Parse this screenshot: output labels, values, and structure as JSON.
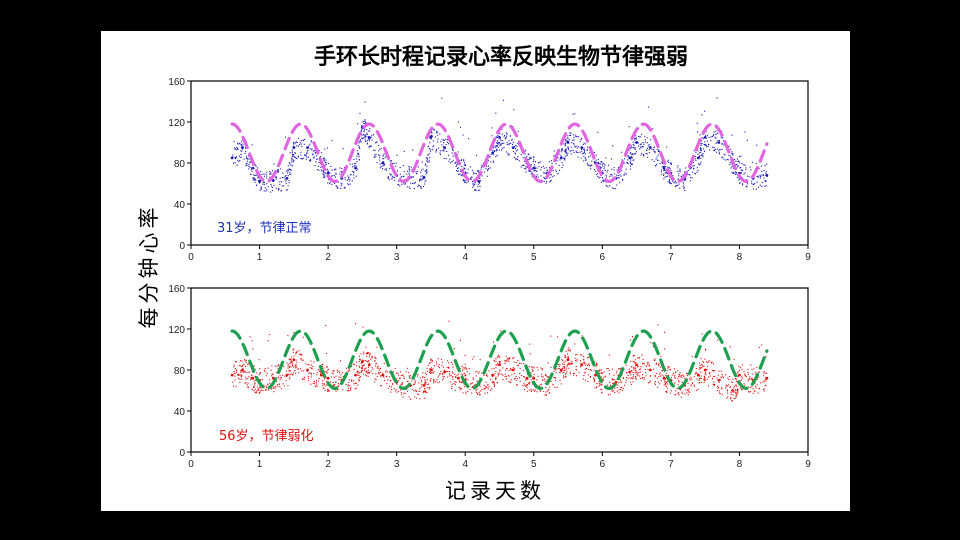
{
  "chart_data": {
    "type": "scatter",
    "title": "手环长时程记录心率反映生物节律强弱",
    "xlabel": "记录天数",
    "ylabel": "每分钟心率",
    "xlim": [
      0,
      9
    ],
    "ylim": [
      0,
      160
    ],
    "xticks": [
      "0",
      "1",
      "2",
      "3",
      "4",
      "5",
      "6",
      "7",
      "8",
      "9"
    ],
    "yticks": [
      "0",
      "40",
      "80",
      "120",
      "160"
    ],
    "grid": false,
    "panels": [
      {
        "label": "31岁，节律正常",
        "label_color": "#1f2fbf",
        "data_color": "#1a1ab8",
        "fit_color": "#e066e0",
        "x_range": [
          0.6,
          8.4
        ],
        "series": [
          {
            "kind": "heart_rate_points",
            "x": [
              0.6,
              0.75,
              0.9,
              1.0,
              1.2,
              1.4,
              1.5,
              1.7,
              1.9,
              2.0,
              2.2,
              2.4,
              2.5,
              2.6,
              2.8,
              3.0,
              3.2,
              3.4,
              3.5,
              3.7,
              3.9,
              4.0,
              4.2,
              4.4,
              4.5,
              4.7,
              4.9,
              5.0,
              5.2,
              5.4,
              5.5,
              5.7,
              5.9,
              6.0,
              6.2,
              6.4,
              6.5,
              6.7,
              6.9,
              7.0,
              7.2,
              7.4,
              7.5,
              7.7,
              7.9,
              8.0,
              8.2,
              8.4
            ],
            "values": [
              85,
              95,
              75,
              62,
              63,
              65,
              95,
              95,
              80,
              70,
              65,
              75,
              115,
              105,
              80,
              68,
              66,
              66,
              105,
              95,
              80,
              70,
              62,
              90,
              105,
              95,
              80,
              75,
              70,
              85,
              100,
              95,
              80,
              70,
              65,
              85,
              100,
              95,
              75,
              70,
              64,
              85,
              105,
              100,
              80,
              70,
              65,
              68
            ]
          },
          {
            "kind": "rhythm_fit",
            "period": 1.0,
            "mean": 90,
            "amplitude": 28,
            "peak_days": [
              0.6,
              1.6,
              2.6,
              3.6,
              4.6,
              5.6,
              6.6,
              7.6
            ]
          }
        ]
      },
      {
        "label": "56岁，节律弱化",
        "label_color": "#e01010",
        "data_color": "#e01010",
        "fit_color": "#1ea050",
        "x_range": [
          0.6,
          8.4
        ],
        "series": [
          {
            "kind": "heart_rate_points",
            "x": [
              0.6,
              0.75,
              0.9,
              1.0,
              1.2,
              1.4,
              1.5,
              1.7,
              1.9,
              2.0,
              2.2,
              2.4,
              2.5,
              2.6,
              2.8,
              3.0,
              3.2,
              3.4,
              3.5,
              3.7,
              3.9,
              4.0,
              4.2,
              4.4,
              4.5,
              4.7,
              4.9,
              5.0,
              5.2,
              5.4,
              5.5,
              5.7,
              5.9,
              6.0,
              6.2,
              6.4,
              6.5,
              6.7,
              6.9,
              7.0,
              7.2,
              7.4,
              7.5,
              7.7,
              7.9,
              8.0,
              8.2,
              8.4
            ],
            "values": [
              75,
              80,
              72,
              70,
              72,
              75,
              90,
              80,
              75,
              72,
              70,
              75,
              88,
              85,
              75,
              68,
              65,
              65,
              80,
              78,
              72,
              70,
              66,
              75,
              85,
              80,
              72,
              72,
              68,
              80,
              90,
              85,
              75,
              70,
              68,
              78,
              85,
              80,
              72,
              70,
              65,
              75,
              80,
              70,
              60,
              75,
              70,
              72
            ]
          },
          {
            "kind": "rhythm_fit",
            "period": 1.0,
            "mean": 90,
            "amplitude": 28,
            "peak_days": [
              0.6,
              1.6,
              2.6,
              3.6,
              4.6,
              5.6,
              6.6,
              7.6
            ]
          }
        ]
      }
    ]
  }
}
